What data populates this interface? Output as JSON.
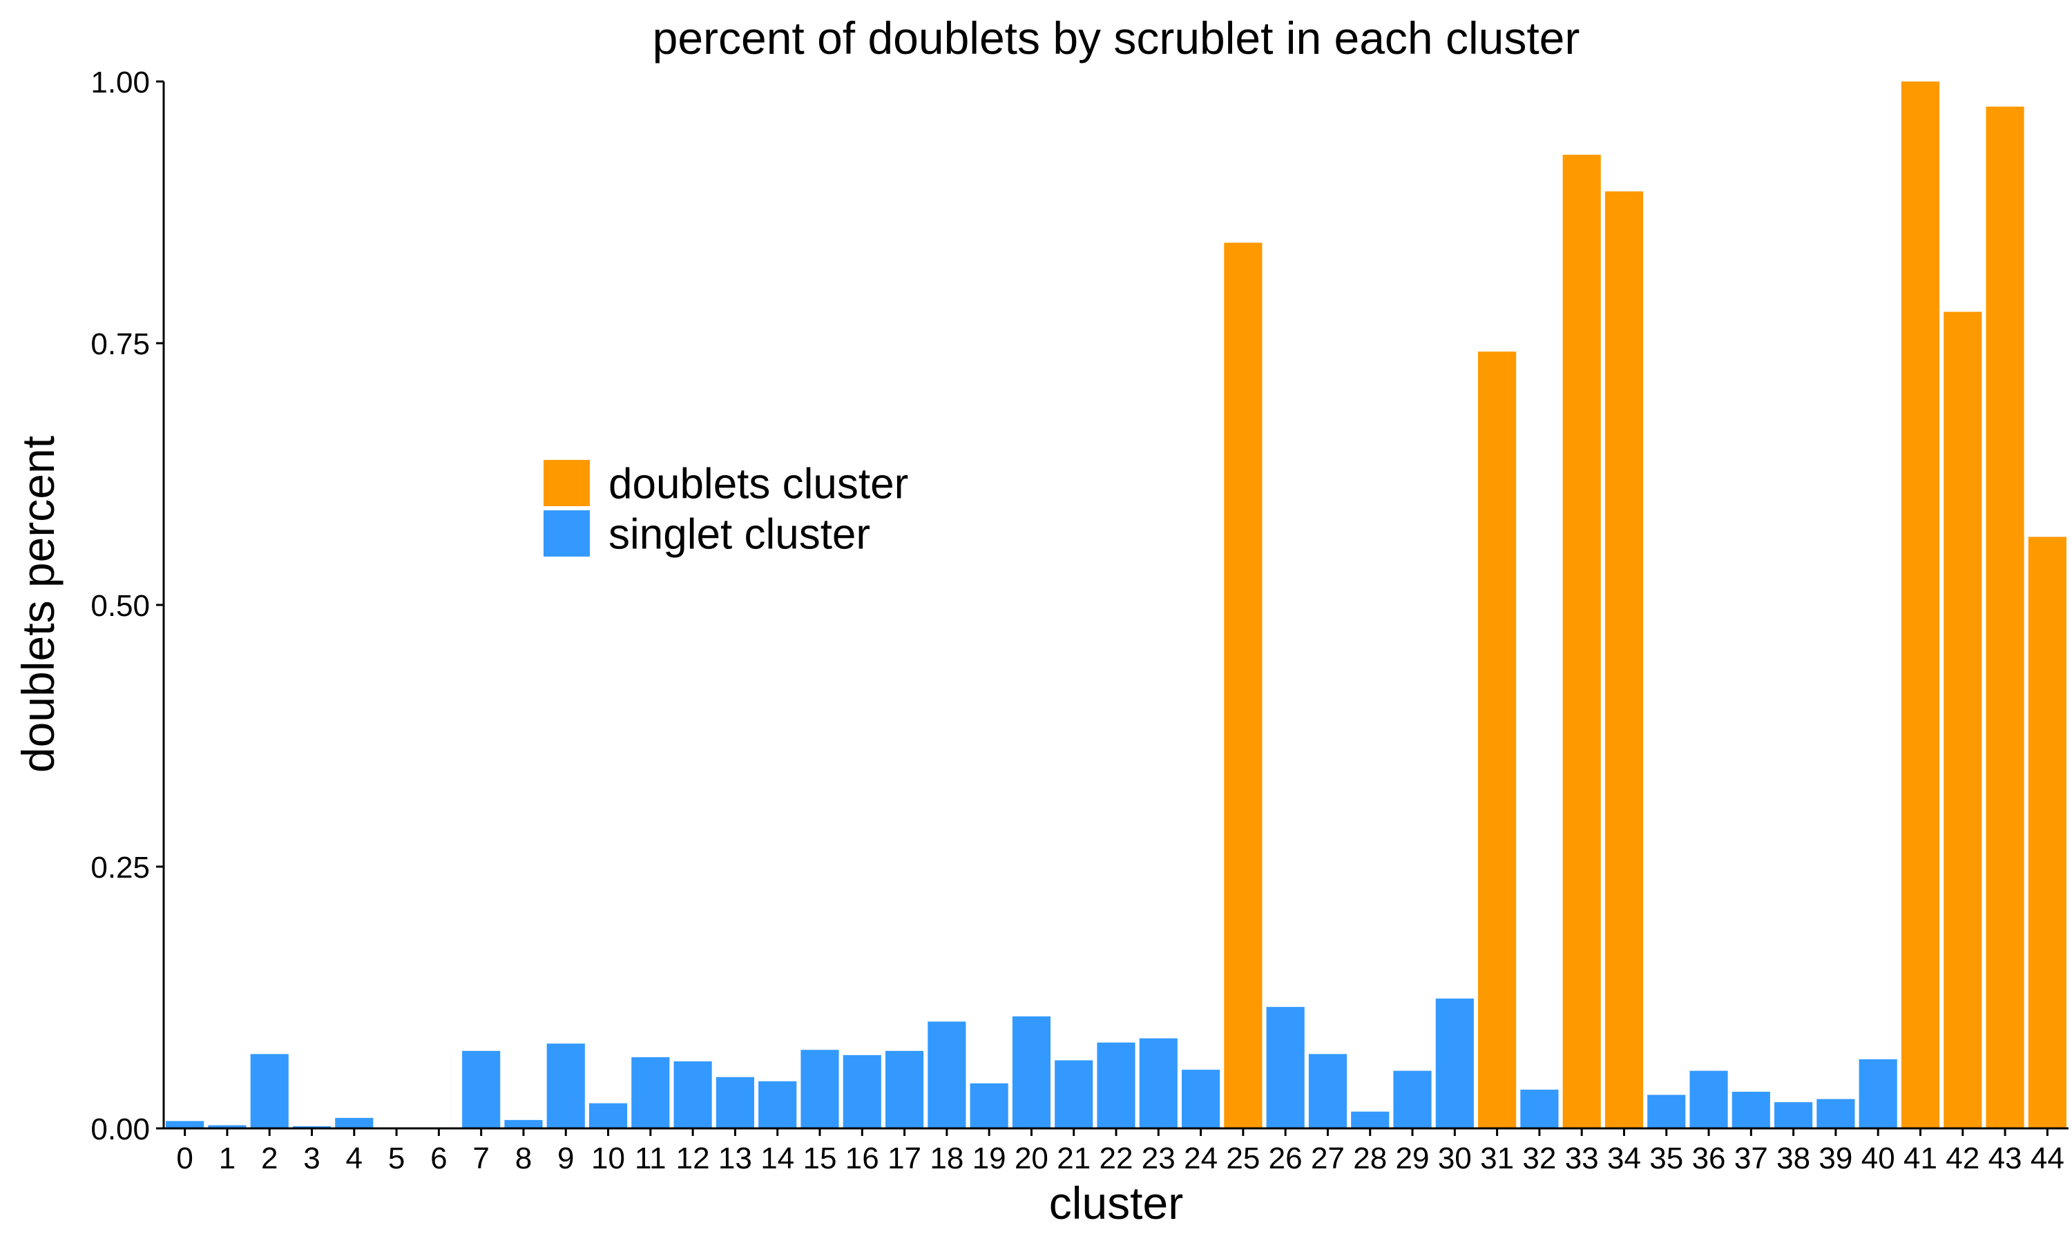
{
  "chart_data": {
    "type": "bar",
    "title": "percent of doublets by scrublet in each cluster",
    "xlabel": "cluster",
    "ylabel": "doublets percent",
    "ylim": [
      0,
      1
    ],
    "yticks": [
      "0.00",
      "0.25",
      "0.50",
      "0.75",
      "1.00"
    ],
    "ytick_values": [
      0,
      0.25,
      0.5,
      0.75,
      1.0
    ],
    "grid": false,
    "legend_position": "upper-left-inside",
    "categories": [
      "0",
      "1",
      "2",
      "3",
      "4",
      "5",
      "6",
      "7",
      "8",
      "9",
      "10",
      "11",
      "12",
      "13",
      "14",
      "15",
      "16",
      "17",
      "18",
      "19",
      "20",
      "21",
      "22",
      "23",
      "24",
      "25",
      "26",
      "27",
      "28",
      "29",
      "30",
      "31",
      "32",
      "33",
      "34",
      "35",
      "36",
      "37",
      "38",
      "39",
      "40",
      "41",
      "42",
      "43",
      "44"
    ],
    "values": [
      0.007,
      0.003,
      0.071,
      0.002,
      0.01,
      0.0,
      0.0,
      0.074,
      0.008,
      0.081,
      0.024,
      0.068,
      0.064,
      0.049,
      0.045,
      0.075,
      0.07,
      0.074,
      0.102,
      0.043,
      0.107,
      0.065,
      0.082,
      0.086,
      0.056,
      0.846,
      0.116,
      0.071,
      0.016,
      0.055,
      0.124,
      0.742,
      0.037,
      0.93,
      0.895,
      0.032,
      0.055,
      0.035,
      0.025,
      0.028,
      0.066,
      1.0,
      0.78,
      0.976,
      0.565
    ],
    "groups": [
      "singlet",
      "singlet",
      "singlet",
      "singlet",
      "singlet",
      "singlet",
      "singlet",
      "singlet",
      "singlet",
      "singlet",
      "singlet",
      "singlet",
      "singlet",
      "singlet",
      "singlet",
      "singlet",
      "singlet",
      "singlet",
      "singlet",
      "singlet",
      "singlet",
      "singlet",
      "singlet",
      "singlet",
      "singlet",
      "doublets",
      "singlet",
      "singlet",
      "singlet",
      "singlet",
      "singlet",
      "doublets",
      "singlet",
      "doublets",
      "doublets",
      "singlet",
      "singlet",
      "singlet",
      "singlet",
      "singlet",
      "singlet",
      "doublets",
      "doublets",
      "doublets",
      "doublets"
    ],
    "legend": [
      {
        "key": "doublets",
        "label": "doublets cluster",
        "color": "#FF9900"
      },
      {
        "key": "singlet",
        "label": "singlet cluster",
        "color": "#3399FF"
      }
    ]
  }
}
